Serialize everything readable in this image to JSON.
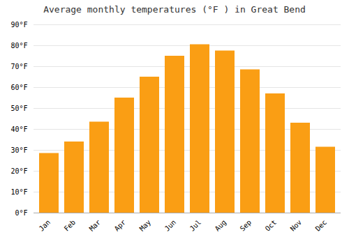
{
  "chart_data": {
    "type": "bar",
    "title": "Average monthly temperatures (°F ) in Great Bend",
    "categories": [
      "Jan",
      "Feb",
      "Mar",
      "Apr",
      "May",
      "Jun",
      "Jul",
      "Aug",
      "Sep",
      "Oct",
      "Nov",
      "Dec"
    ],
    "values": [
      28.5,
      34.0,
      43.5,
      55.0,
      65.0,
      75.0,
      80.5,
      77.5,
      68.5,
      57.0,
      43.0,
      31.5
    ],
    "color": "#fa9e14",
    "ylim": [
      0,
      90
    ],
    "yticks": [
      {
        "value": 0,
        "label": "0°F"
      },
      {
        "value": 10,
        "label": "10°F"
      },
      {
        "value": 20,
        "label": "20°F"
      },
      {
        "value": 30,
        "label": "30°F"
      },
      {
        "value": 40,
        "label": "40°F"
      },
      {
        "value": 50,
        "label": "50°F"
      },
      {
        "value": 60,
        "label": "60°F"
      },
      {
        "value": 70,
        "label": "70°F"
      },
      {
        "value": 80,
        "label": "80°F"
      },
      {
        "value": 90,
        "label": "90°F"
      }
    ],
    "grid": true
  }
}
